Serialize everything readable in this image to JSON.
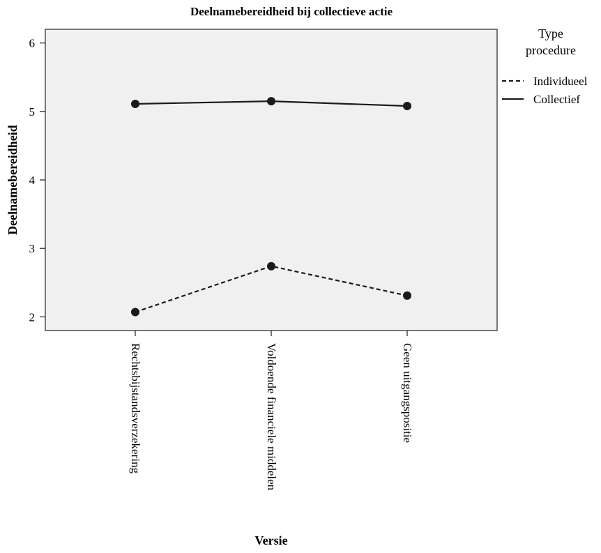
{
  "chart_data": {
    "type": "line",
    "title": "Deelnamebereidheid bij collectieve actie",
    "xlabel": "Versie",
    "ylabel": "Deelnamebereidheid",
    "categories": [
      "Rechtsbijstandsverzekering",
      "Voldoende financiele middelen",
      "Geen uitgangspositie"
    ],
    "ylim": [
      1.8,
      6.2
    ],
    "yticks": [
      2,
      3,
      4,
      5,
      6
    ],
    "legend": {
      "title_line1": "Type",
      "title_line2": "procedure",
      "placement": "right"
    },
    "series": [
      {
        "name": "Individueel",
        "style": "dashed",
        "values": [
          2.07,
          2.74,
          2.31
        ]
      },
      {
        "name": "Collectief",
        "style": "solid",
        "values": [
          5.11,
          5.15,
          5.08
        ]
      }
    ],
    "plot_background": "#f0f0f0",
    "line_color": "#1a1a1a",
    "grid": false
  }
}
